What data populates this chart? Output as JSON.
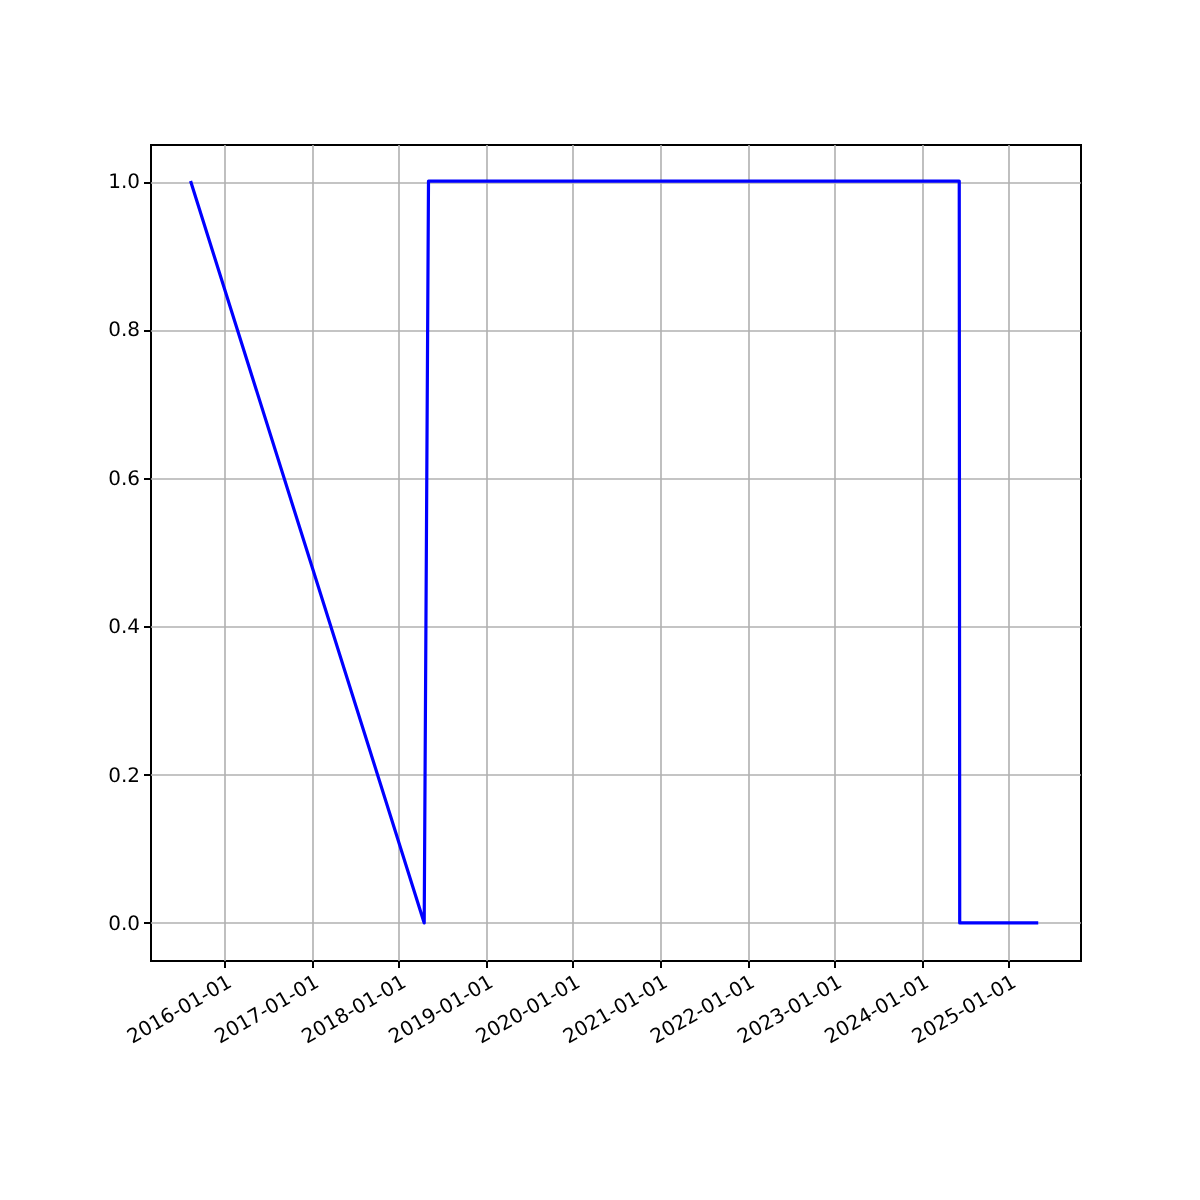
{
  "chart_data": {
    "type": "line",
    "x": [
      "2015-08-14",
      "2018-04-19",
      "2018-05-07",
      "2024-06-08",
      "2024-06-10",
      "2025-05-05"
    ],
    "series": [
      {
        "color": "#0000ff",
        "values": [
          1,
          0,
          1,
          1,
          0,
          0
        ]
      }
    ],
    "xlim": [
      "2015-02-25",
      "2025-10-27"
    ],
    "xticks": [
      "2016-01-01",
      "2017-01-01",
      "2018-01-01",
      "2019-01-01",
      "2020-01-01",
      "2021-01-01",
      "2022-01-01",
      "2023-01-01",
      "2024-01-01",
      "2025-01-01"
    ],
    "ylim": [
      -0.05,
      1.05
    ],
    "yticks": [
      {
        "value": 0,
        "label": "0.0"
      },
      {
        "value": 0.2,
        "label": "0.2"
      },
      {
        "value": 0.4,
        "label": "0.4"
      },
      {
        "value": 0.6,
        "label": "0.6"
      },
      {
        "value": 0.8,
        "label": "0.8"
      },
      {
        "value": 1,
        "label": "1.0"
      }
    ],
    "grid": true,
    "marker": "none",
    "line_style": "solid"
  }
}
